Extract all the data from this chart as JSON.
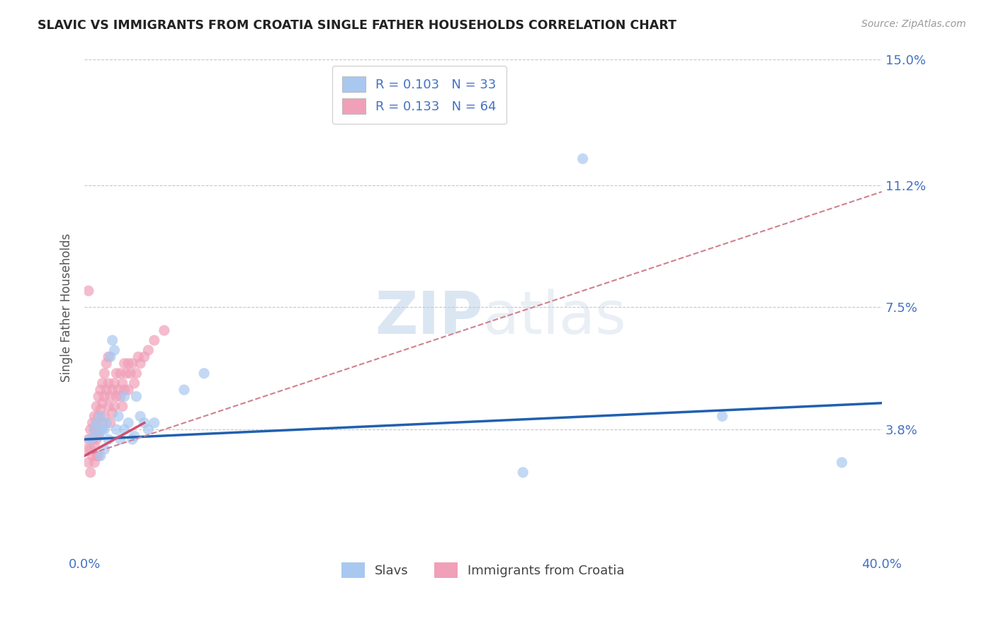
{
  "title": "SLAVIC VS IMMIGRANTS FROM CROATIA SINGLE FATHER HOUSEHOLDS CORRELATION CHART",
  "source": "Source: ZipAtlas.com",
  "ylabel": "Single Father Households",
  "x_min": 0.0,
  "x_max": 0.4,
  "y_min": 0.0,
  "y_max": 0.15,
  "y_tick_labels_right": [
    "3.8%",
    "7.5%",
    "11.2%",
    "15.0%"
  ],
  "y_tick_vals_right": [
    0.038,
    0.075,
    0.112,
    0.15
  ],
  "grid_color": "#c8c8c8",
  "bg_color": "#ffffff",
  "slavs_color": "#a8c8f0",
  "croatia_color": "#f0a0b8",
  "slavs_line_color": "#2060b0",
  "croatia_line_color": "#d05070",
  "croatia_dashed_color": "#d08090",
  "legend_R1": "R = 0.103",
  "legend_N1": "N = 33",
  "legend_R2": "R = 0.133",
  "legend_N2": "N = 64",
  "legend_label1": "Slavs",
  "legend_label2": "Immigrants from Croatia",
  "watermark_zip": "ZIP",
  "watermark_atlas": "atlas",
  "slavs_x": [
    0.003,
    0.005,
    0.006,
    0.007,
    0.008,
    0.008,
    0.009,
    0.01,
    0.01,
    0.011,
    0.012,
    0.013,
    0.014,
    0.015,
    0.016,
    0.017,
    0.018,
    0.02,
    0.02,
    0.022,
    0.024,
    0.025,
    0.026,
    0.028,
    0.03,
    0.032,
    0.035,
    0.05,
    0.06,
    0.25,
    0.32,
    0.38,
    0.22
  ],
  "slavs_y": [
    0.035,
    0.038,
    0.04,
    0.036,
    0.042,
    0.03,
    0.038,
    0.038,
    0.032,
    0.04,
    0.035,
    0.06,
    0.065,
    0.062,
    0.038,
    0.042,
    0.035,
    0.048,
    0.038,
    0.04,
    0.035,
    0.036,
    0.048,
    0.042,
    0.04,
    0.038,
    0.04,
    0.05,
    0.055,
    0.12,
    0.042,
    0.028,
    0.025
  ],
  "croatia_x": [
    0.001,
    0.002,
    0.002,
    0.003,
    0.003,
    0.003,
    0.004,
    0.004,
    0.004,
    0.005,
    0.005,
    0.005,
    0.005,
    0.006,
    0.006,
    0.006,
    0.006,
    0.007,
    0.007,
    0.007,
    0.007,
    0.008,
    0.008,
    0.008,
    0.009,
    0.009,
    0.009,
    0.01,
    0.01,
    0.01,
    0.011,
    0.011,
    0.012,
    0.012,
    0.012,
    0.013,
    0.013,
    0.014,
    0.014,
    0.015,
    0.015,
    0.016,
    0.016,
    0.017,
    0.018,
    0.018,
    0.019,
    0.019,
    0.02,
    0.02,
    0.021,
    0.022,
    0.022,
    0.023,
    0.024,
    0.025,
    0.026,
    0.027,
    0.028,
    0.03,
    0.032,
    0.035,
    0.04,
    0.002
  ],
  "croatia_y": [
    0.032,
    0.035,
    0.028,
    0.038,
    0.032,
    0.025,
    0.04,
    0.035,
    0.03,
    0.042,
    0.038,
    0.033,
    0.028,
    0.045,
    0.04,
    0.035,
    0.03,
    0.048,
    0.042,
    0.036,
    0.03,
    0.05,
    0.044,
    0.038,
    0.052,
    0.046,
    0.04,
    0.055,
    0.048,
    0.042,
    0.058,
    0.05,
    0.06,
    0.052,
    0.045,
    0.048,
    0.04,
    0.05,
    0.043,
    0.052,
    0.045,
    0.055,
    0.048,
    0.05,
    0.055,
    0.048,
    0.052,
    0.045,
    0.058,
    0.05,
    0.055,
    0.058,
    0.05,
    0.055,
    0.058,
    0.052,
    0.055,
    0.06,
    0.058,
    0.06,
    0.062,
    0.065,
    0.068,
    0.08
  ]
}
